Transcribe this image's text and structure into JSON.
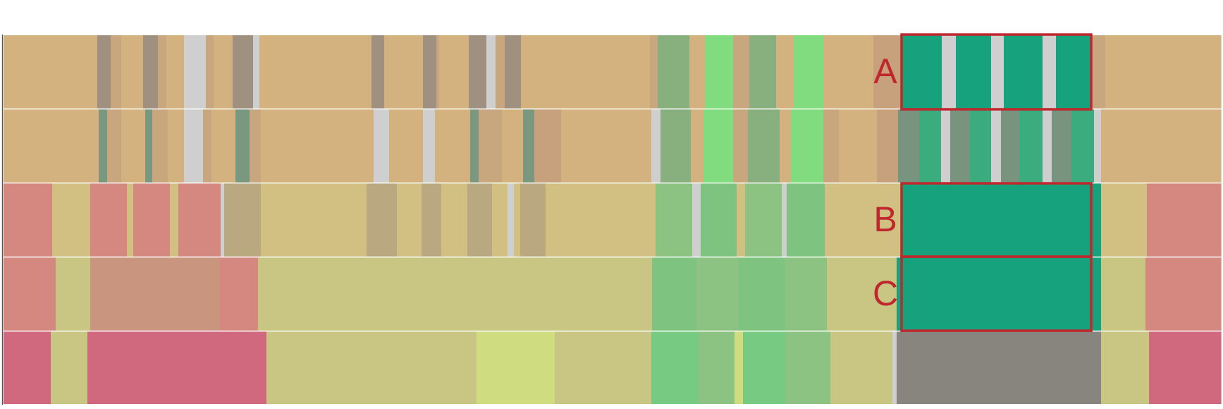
{
  "figure": {
    "palette": {
      "tan": "#d4b27f",
      "tan2": "#c8a67e",
      "taupe": "#a09080",
      "light_gray": "#cfcfcf",
      "gray_green": "#7a9880",
      "tan_rose": "#c7a17c",
      "muted_green": "#88b07e",
      "bright_green": "#80dc7e",
      "salmon": "#d48880",
      "khaki": "#d2bf82",
      "khaki_dark": "#baa881",
      "olive": "#c9c582",
      "olive_pale": "#d2dd80",
      "green_mid": "#8cc282",
      "green_soft": "#7ec480",
      "green_strong": "#77ca82",
      "pink": "#d0687e",
      "rose_tan": "#c9957f",
      "teal": "#17a27e",
      "teal_dark": "#78947e",
      "teal_mid": "#3aac7e",
      "gray_dark": "#87857e",
      "pale_yellow": "#cfdc7f",
      "box_red": "#c0272d"
    },
    "labels": [
      "A",
      "B",
      "C"
    ]
  }
}
